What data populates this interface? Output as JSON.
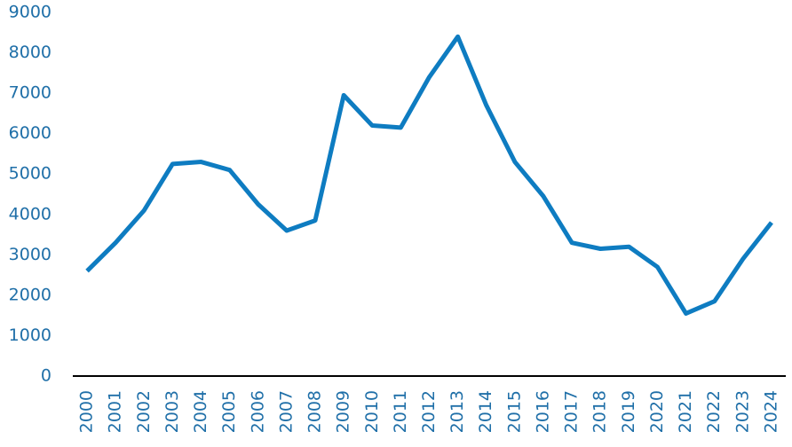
{
  "chart_data": {
    "type": "line",
    "categories": [
      "2000",
      "2001",
      "2002",
      "2003",
      "2004",
      "2005",
      "2006",
      "2007",
      "2008",
      "2009",
      "2010",
      "2011",
      "2012",
      "2013",
      "2014",
      "2015",
      "2016",
      "2017",
      "2018",
      "2019",
      "2020",
      "2021",
      "2022",
      "2023",
      "2024"
    ],
    "values": [
      2600,
      3300,
      4100,
      5250,
      5300,
      5100,
      4250,
      3600,
      3850,
      6950,
      6200,
      6150,
      7400,
      8400,
      6700,
      5300,
      4450,
      3300,
      3150,
      3200,
      2700,
      1550,
      1850,
      2900,
      3800
    ],
    "color": "#0e7cc1",
    "ylim": [
      0,
      9000
    ],
    "yticks": [
      0,
      1000,
      2000,
      3000,
      4000,
      5000,
      6000,
      7000,
      8000,
      9000
    ],
    "grid": false
  }
}
